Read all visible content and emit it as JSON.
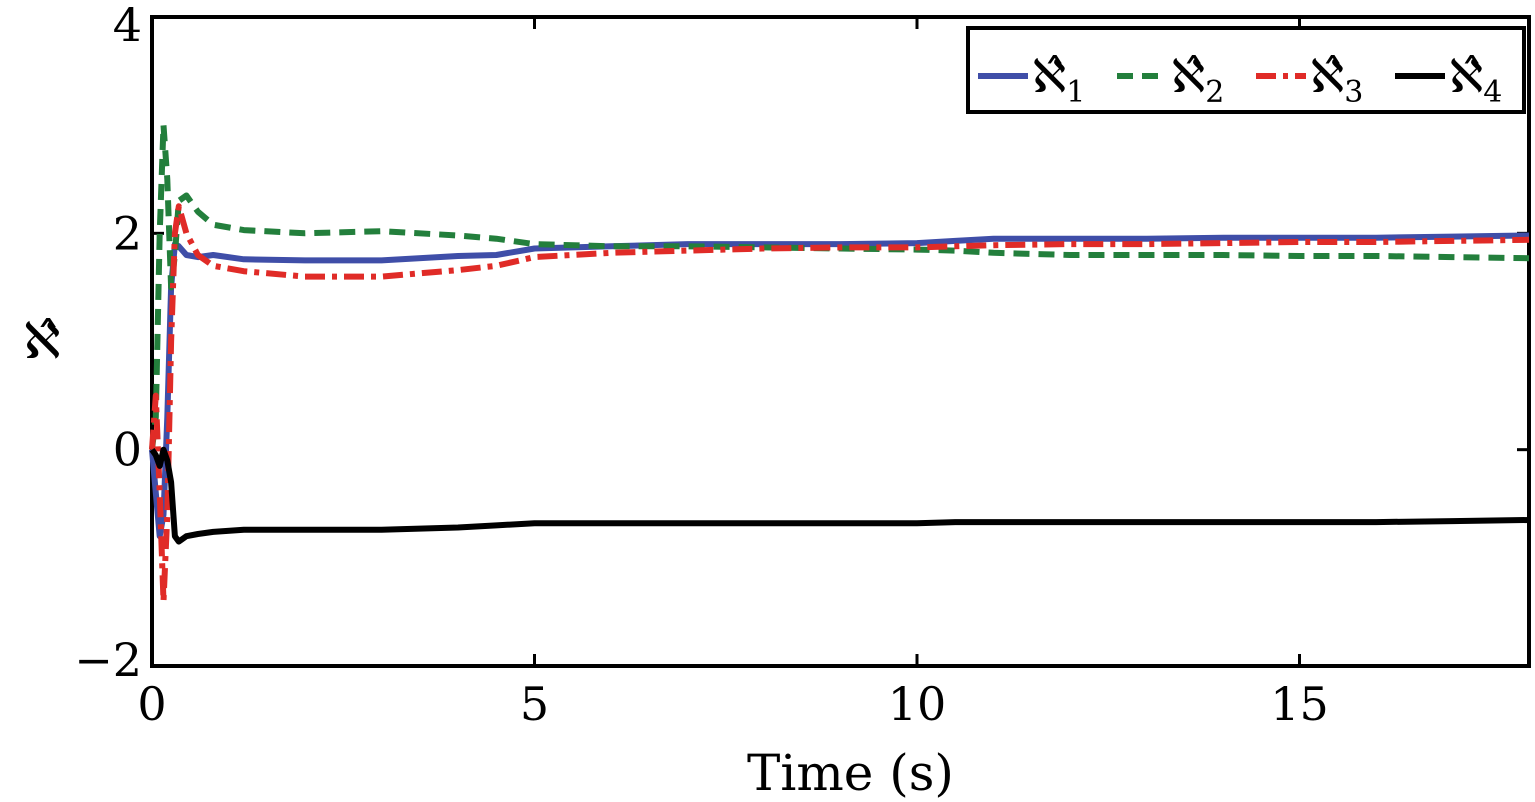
{
  "chart_data": {
    "type": "line",
    "xlabel": "Time (s)",
    "ylabel": "ℵ̂",
    "xlim": [
      0,
      18
    ],
    "ylim": [
      -2,
      4
    ],
    "xticks": [
      0,
      5,
      10,
      15
    ],
    "yticks": [
      -2,
      0,
      2,
      4
    ],
    "xtick_labels": [
      "0",
      "5",
      "10",
      "15"
    ],
    "ytick_labels": [
      "−2",
      "0",
      "2",
      "4"
    ],
    "grid": false,
    "legend_position": "top-right",
    "series": [
      {
        "name": "ℵ̂1",
        "legend_symbol": "ℵ̂",
        "legend_subscript": "1",
        "color": "#3f4ea8",
        "style": "solid",
        "x": [
          0,
          0.05,
          0.1,
          0.15,
          0.2,
          0.25,
          0.3,
          0.35,
          0.45,
          0.6,
          0.8,
          1.2,
          2,
          3,
          4,
          4.5,
          5,
          6,
          7,
          8,
          9,
          10,
          10.5,
          11,
          12,
          13,
          14,
          15,
          16,
          17,
          18
        ],
        "y": [
          0,
          -0.4,
          -0.8,
          -0.6,
          0.3,
          1.5,
          1.9,
          1.88,
          1.8,
          1.78,
          1.8,
          1.76,
          1.75,
          1.75,
          1.79,
          1.8,
          1.86,
          1.88,
          1.9,
          1.9,
          1.9,
          1.91,
          1.93,
          1.95,
          1.95,
          1.95,
          1.96,
          1.96,
          1.96,
          1.97,
          1.98
        ]
      },
      {
        "name": "ℵ̂2",
        "legend_symbol": "ℵ̂",
        "legend_subscript": "2",
        "color": "#237f3c",
        "style": "dashed",
        "x": [
          0,
          0.05,
          0.1,
          0.15,
          0.2,
          0.25,
          0.3,
          0.35,
          0.45,
          0.6,
          0.8,
          1.2,
          2,
          3,
          4,
          4.5,
          5,
          6,
          7,
          8,
          9,
          10,
          10.5,
          11,
          12,
          13,
          14,
          15,
          16,
          17,
          18
        ],
        "y": [
          0,
          0.3,
          2.0,
          3.0,
          2.5,
          1.5,
          1.8,
          2.3,
          2.35,
          2.2,
          2.08,
          2.03,
          2.0,
          2.02,
          1.98,
          1.95,
          1.9,
          1.88,
          1.88,
          1.87,
          1.86,
          1.85,
          1.84,
          1.82,
          1.8,
          1.8,
          1.8,
          1.79,
          1.79,
          1.78,
          1.77
        ]
      },
      {
        "name": "ℵ̂3",
        "legend_symbol": "ℵ̂",
        "legend_subscript": "3",
        "color": "#e02b27",
        "style": "dashdot",
        "x": [
          0,
          0.05,
          0.1,
          0.15,
          0.2,
          0.25,
          0.3,
          0.35,
          0.45,
          0.6,
          0.8,
          1.2,
          2,
          3,
          4,
          4.5,
          5,
          6,
          7,
          8,
          9,
          10,
          10.5,
          11,
          12,
          13,
          14,
          15,
          16,
          17,
          18
        ],
        "y": [
          0,
          0.5,
          -0.4,
          -1.4,
          -0.6,
          1.0,
          2.0,
          2.25,
          2.0,
          1.8,
          1.7,
          1.65,
          1.6,
          1.6,
          1.66,
          1.7,
          1.78,
          1.82,
          1.84,
          1.86,
          1.87,
          1.87,
          1.88,
          1.89,
          1.9,
          1.9,
          1.91,
          1.92,
          1.92,
          1.93,
          1.94
        ]
      },
      {
        "name": "ℵ̂4",
        "legend_symbol": "ℵ̂",
        "legend_subscript": "4",
        "color": "#000000",
        "style": "solid",
        "x": [
          0,
          0.05,
          0.1,
          0.15,
          0.2,
          0.25,
          0.3,
          0.35,
          0.45,
          0.6,
          0.8,
          1.2,
          2,
          3,
          4,
          4.5,
          5,
          6,
          7,
          8,
          9,
          10,
          10.5,
          11,
          12,
          13,
          14,
          15,
          16,
          17,
          18
        ],
        "y": [
          0,
          -0.05,
          -0.15,
          0.0,
          -0.1,
          -0.3,
          -0.8,
          -0.85,
          -0.8,
          -0.78,
          -0.76,
          -0.74,
          -0.74,
          -0.74,
          -0.72,
          -0.7,
          -0.68,
          -0.68,
          -0.68,
          -0.68,
          -0.68,
          -0.68,
          -0.67,
          -0.67,
          -0.67,
          -0.67,
          -0.67,
          -0.67,
          -0.67,
          -0.66,
          -0.65
        ]
      }
    ]
  }
}
